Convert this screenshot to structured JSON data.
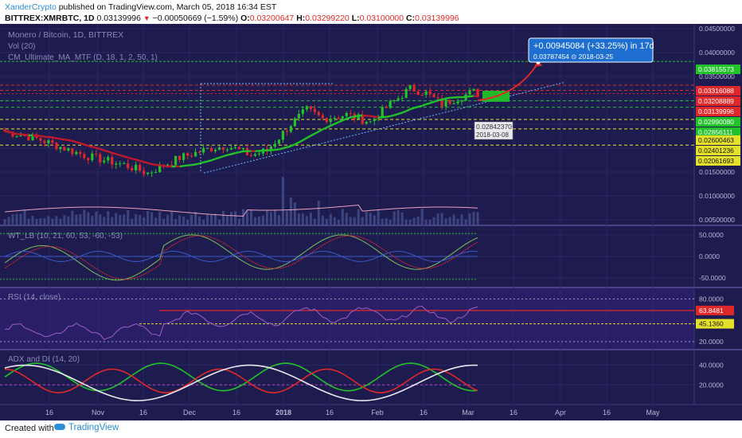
{
  "header": {
    "author": "XanderCrypto",
    "published_text": "published on TradingView.com, March 05, 2018 16:34 EST",
    "symbol": "BITTREX:XMRBTC, 1D",
    "last": "0.03139996",
    "change_arrow": "▼",
    "change": "−0.00050669 (−1.59%)",
    "o_label": "O:",
    "o_value": "0.03200647",
    "h_label": "H:",
    "h_value": "0.03299220",
    "l_label": "L:",
    "l_value": "0.03100000",
    "c_label": "C:",
    "c_value": "0.03139996"
  },
  "legend": {
    "title": "Monero / Bitcoin, 1D, BITTREX",
    "vol": "Vol (20)",
    "ma": "CM_Ultimate_MA_MTF (D, 18, 1, 2, 50, 1)"
  },
  "projection": {
    "line1": "+0.00945084 (+33.25%) in 17d",
    "line2": "0.03787454  ⊙ 2018-03-25"
  },
  "pivot_label": {
    "price": "0.02842370",
    "date": "2018-03-08"
  },
  "footer": {
    "created_with": "Created with",
    "brand": "TradingView"
  },
  "colors": {
    "panel_bg": "#1e1b4e",
    "up_candle": "#22c22a",
    "down_candle": "#e0282a",
    "ma_rising": "#22c22a",
    "ma_falling": "#c0182a",
    "projection": "#1e6fd0",
    "green_level": "#22c22a",
    "red_level": "#e0282a",
    "yellow_level": "#e5e12a"
  },
  "chart_data": [
    {
      "type": "candlestick",
      "panel": "price",
      "title": "Monero / Bitcoin, 1D, BITTREX",
      "x_ticks": [
        "16",
        "Nov",
        "16",
        "Dec",
        "16",
        "2018",
        "16",
        "Feb",
        "16",
        "Mar",
        "16",
        "Apr",
        "16",
        "May"
      ],
      "y_ticks": [
        "0.04500000",
        "0.04000000",
        "0.03500000",
        "0.03000000",
        "0.02500000",
        "0.02000000",
        "0.01500000",
        "0.01000000",
        "0.00500000"
      ],
      "ylim": [
        0.004,
        0.046
      ],
      "price_labels": [
        {
          "value": "0.03815573",
          "color": "#22c22a"
        },
        {
          "value": "0.03316088",
          "color": "#e0282a"
        },
        {
          "value": "0.03208889",
          "color": "#e0282a"
        },
        {
          "value": "0.03139996",
          "color": "#e0282a"
        },
        {
          "value": "0.02990080",
          "color": "#22c22a"
        },
        {
          "value": "0.02856111",
          "color": "#22c22a"
        },
        {
          "value": "0.02600463",
          "color": "#e5e12a"
        },
        {
          "value": "0.02401236",
          "color": "#e5e12a"
        },
        {
          "value": "0.02061693",
          "color": "#e5e12a"
        }
      ],
      "series": [
        {
          "name": "Vol (20)",
          "type": "bar"
        },
        {
          "name": "CM_Ultimate_MA_MTF (D, 18, 1, 2, 50, 1)",
          "type": "line"
        }
      ]
    },
    {
      "type": "line",
      "panel": "oscillator",
      "title": "WT_LB (10, 21, 60, 53, -60, -53)",
      "y_ticks": [
        "50.0000",
        "0.0000",
        "-50.0000"
      ],
      "ylim": [
        -70,
        70
      ]
    },
    {
      "type": "line",
      "panel": "rsi",
      "title": "RSI (14, close)",
      "y_ticks": [
        "80.0000",
        "20.0000"
      ],
      "ylim": [
        10,
        95
      ],
      "price_labels": [
        {
          "value": "63.8481",
          "color": "#e0282a"
        },
        {
          "value": "45.1360",
          "color": "#e5e12a"
        }
      ]
    },
    {
      "type": "line",
      "panel": "adx",
      "title": "ADX and DI (14, 20)",
      "y_ticks": [
        "40.0000",
        "20.0000"
      ],
      "ylim": [
        0,
        55
      ]
    }
  ]
}
